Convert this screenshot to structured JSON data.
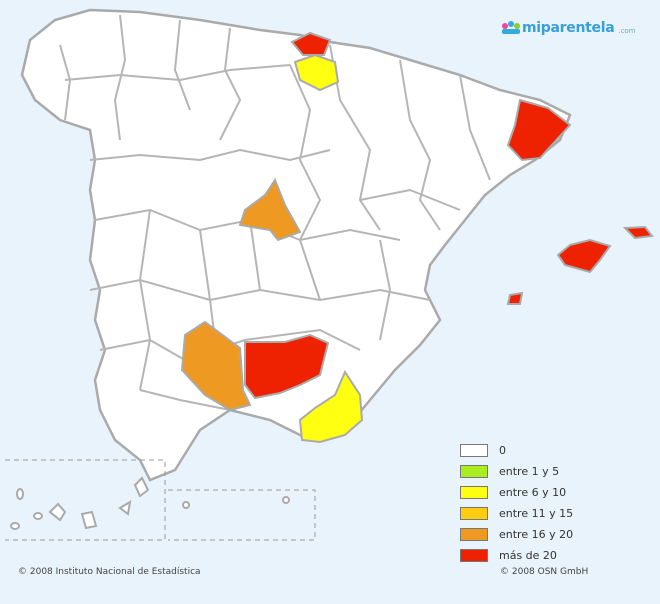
{
  "logo": {
    "text": "miparentela",
    "suffix": ".com"
  },
  "legend": [
    {
      "label": "0",
      "color": "#ffffff"
    },
    {
      "label": "entre 1 y 5",
      "color": "#aaee22"
    },
    {
      "label": "entre 6 y 10",
      "color": "#ffff11"
    },
    {
      "label": "entre 11 y 15",
      "color": "#ffcc11"
    },
    {
      "label": "entre 16 y 20",
      "color": "#ee9922"
    },
    {
      "label": "más de 20",
      "color": "#ee2200"
    }
  ],
  "highlighted_provinces": [
    {
      "name": "Gipuzkoa",
      "category": "más de 20"
    },
    {
      "name": "Álava",
      "category": "entre 6 y 10"
    },
    {
      "name": "Barcelona",
      "category": "más de 20"
    },
    {
      "name": "Segovia",
      "category": "entre 16 y 20"
    },
    {
      "name": "Mallorca",
      "category": "más de 20"
    },
    {
      "name": "Menorca",
      "category": "más de 20"
    },
    {
      "name": "Ibiza",
      "category": "más de 20"
    },
    {
      "name": "Córdoba",
      "category": "entre 16 y 20"
    },
    {
      "name": "Jaén",
      "category": "más de 20"
    },
    {
      "name": "Almería",
      "category": "entre 6 y 10"
    }
  ],
  "credits": {
    "left": "© 2008 Instituto Nacional de Estadística",
    "right": "© 2008 OSN GmbH"
  },
  "colors": {
    "sea": "#e8f3fb",
    "land": "#ffffff",
    "border": "#aaaaaa"
  }
}
